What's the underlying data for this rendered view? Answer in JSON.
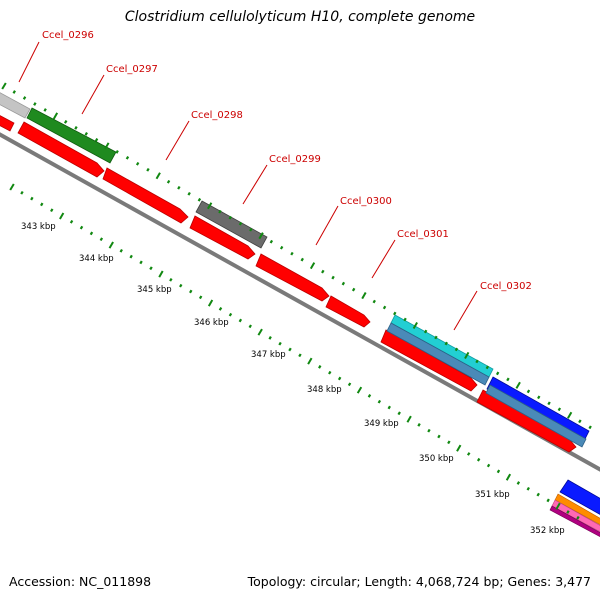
{
  "title": "Clostridium cellulolyticum H10, complete genome",
  "footer": {
    "accession": "Accession: NC_011898",
    "summary": "Topology: circular; Length: 4,068,724 bp; Genes: 3,477"
  },
  "colors": {
    "red_gene": "#ff0000",
    "label_red": "#cc0000",
    "tick_green": "#118811",
    "backbone_gray": "#7a7a7a",
    "gray_gene": "#6b6b6b",
    "light_gray_gene": "#c4c4c4",
    "green_gene": "#1f8a1f",
    "cyan_gene": "#22cfd3",
    "steel_gene": "#4a8ab8",
    "blue_gene": "#0a1aff"
  },
  "genes": [
    {
      "name": "Ccel_0296"
    },
    {
      "name": "Ccel_0297"
    },
    {
      "name": "Ccel_0298"
    },
    {
      "name": "Ccel_0299"
    },
    {
      "name": "Ccel_0300"
    },
    {
      "name": "Ccel_0301"
    },
    {
      "name": "Ccel_0302"
    }
  ],
  "kbp_ticks": [
    "343 kbp",
    "344 kbp",
    "345 kbp",
    "346 kbp",
    "347 kbp",
    "348 kbp",
    "349 kbp",
    "350 kbp",
    "351 kbp",
    "352 kbp"
  ]
}
